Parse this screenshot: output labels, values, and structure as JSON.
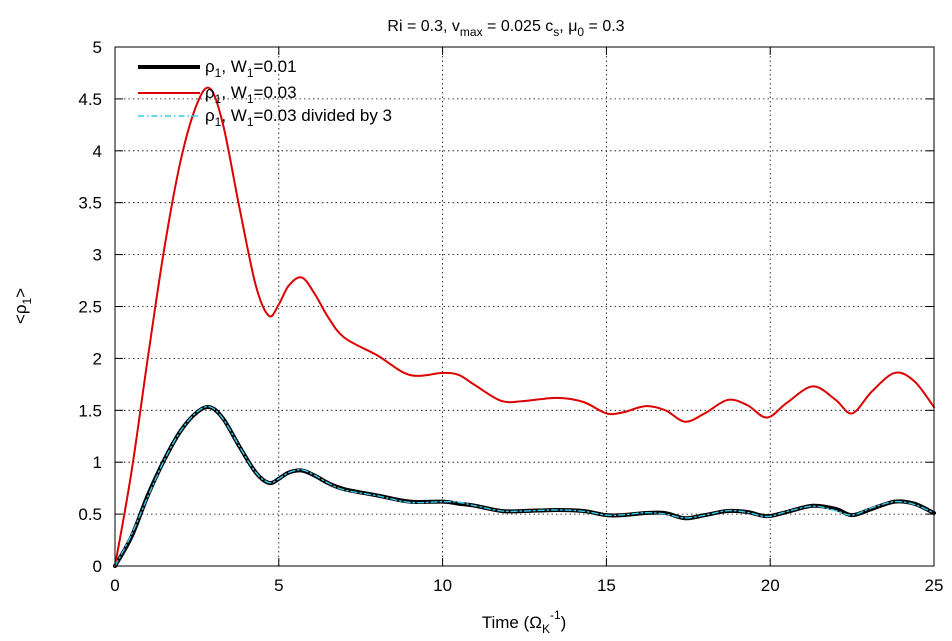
{
  "chart_data": {
    "type": "line",
    "title": {
      "t1": "Ri = 0.3, v",
      "t1_sub": "max",
      "t2": " = 0.025 c",
      "t2_sub": "s",
      "t3": ", μ",
      "t3_sub": "0",
      "t4": " = 0.3"
    },
    "xlabel": {
      "pre": "Time (Ω",
      "sub": "K",
      "sup": "-1",
      "post": ")"
    },
    "ylabel": {
      "pre": "<ρ",
      "sub": "1",
      "post": ">"
    },
    "xlim": [
      0,
      25
    ],
    "ylim": [
      0,
      5
    ],
    "xticks": [
      0,
      5,
      10,
      15,
      20,
      25
    ],
    "yticks": [
      0,
      0.5,
      1,
      1.5,
      2,
      2.5,
      3,
      3.5,
      4,
      4.5,
      5
    ],
    "xtick_labels": [
      "0",
      "5",
      "10",
      "15",
      "20",
      "25"
    ],
    "ytick_labels": [
      "0",
      "0.5",
      "1",
      "1.5",
      "2",
      "2.5",
      "3",
      "3.5",
      "4",
      "4.5",
      "5"
    ],
    "grid": true,
    "legend_position": "top-left",
    "series": [
      {
        "legend": {
          "a": "ρ",
          "a_sub": "1",
          "b": ", W",
          "b_sub": "1",
          "c": "=0.01"
        },
        "color": "#000000",
        "style": "solid-thick",
        "x": [
          0,
          0.5,
          1,
          1.5,
          2,
          2.5,
          2.9,
          3.3,
          3.8,
          4.3,
          4.7,
          5.0,
          5.3,
          5.7,
          6.1,
          6.5,
          7,
          8,
          9,
          10,
          10.5,
          11,
          11.8,
          12.5,
          13.5,
          14.3,
          15,
          15.5,
          16.2,
          16.8,
          17.4,
          18,
          18.7,
          19.3,
          19.9,
          20.5,
          21.3,
          22,
          22.5,
          23.1,
          23.8,
          24.4,
          25
        ],
        "y": [
          0,
          0.28,
          0.68,
          1.02,
          1.3,
          1.48,
          1.53,
          1.42,
          1.15,
          0.9,
          0.8,
          0.84,
          0.9,
          0.92,
          0.87,
          0.8,
          0.74,
          0.68,
          0.62,
          0.62,
          0.6,
          0.58,
          0.53,
          0.53,
          0.54,
          0.53,
          0.49,
          0.49,
          0.51,
          0.51,
          0.46,
          0.49,
          0.53,
          0.52,
          0.48,
          0.52,
          0.58,
          0.55,
          0.49,
          0.55,
          0.62,
          0.6,
          0.51
        ]
      },
      {
        "legend": {
          "a": "ρ",
          "a_sub": "1",
          "b": ", W",
          "b_sub": "1",
          "c": "=0.03"
        },
        "color": "#dd0000",
        "style": "solid",
        "x": [
          0,
          0.5,
          1,
          1.5,
          2,
          2.5,
          2.9,
          3.3,
          3.8,
          4.3,
          4.7,
          5.0,
          5.3,
          5.7,
          6.1,
          6.5,
          7,
          8,
          9,
          10,
          10.5,
          11,
          11.8,
          12.5,
          13.5,
          14.3,
          15,
          15.5,
          16.2,
          16.8,
          17.4,
          18,
          18.7,
          19.3,
          19.9,
          20.5,
          21.3,
          22,
          22.5,
          23.1,
          23.8,
          24.4,
          25
        ],
        "y": [
          0,
          0.9,
          2.0,
          3.05,
          3.9,
          4.45,
          4.6,
          4.25,
          3.45,
          2.7,
          2.41,
          2.52,
          2.7,
          2.78,
          2.62,
          2.4,
          2.2,
          2.03,
          1.84,
          1.86,
          1.84,
          1.74,
          1.59,
          1.59,
          1.62,
          1.58,
          1.47,
          1.48,
          1.54,
          1.5,
          1.39,
          1.47,
          1.6,
          1.55,
          1.43,
          1.57,
          1.73,
          1.6,
          1.47,
          1.68,
          1.86,
          1.78,
          1.53
        ]
      },
      {
        "legend": {
          "a": "ρ",
          "a_sub": "1",
          "b": ", W",
          "b_sub": "1",
          "c": "=0.03 divided by 3"
        },
        "color": "#33ccee",
        "style": "dash-dot",
        "x": [
          0,
          0.5,
          1,
          1.5,
          2,
          2.5,
          2.9,
          3.3,
          3.8,
          4.3,
          4.7,
          5.0,
          5.3,
          5.7,
          6.1,
          6.5,
          7,
          8,
          9,
          10,
          10.5,
          11,
          11.8,
          12.5,
          13.5,
          14.3,
          15,
          15.5,
          16.2,
          16.8,
          17.4,
          18,
          18.7,
          19.3,
          19.9,
          20.5,
          21.3,
          22,
          22.5,
          23.1,
          23.8,
          24.4,
          25
        ],
        "y": [
          0,
          0.3,
          0.667,
          1.017,
          1.3,
          1.483,
          1.533,
          1.417,
          1.15,
          0.9,
          0.803,
          0.84,
          0.9,
          0.927,
          0.873,
          0.8,
          0.733,
          0.677,
          0.613,
          0.62,
          0.613,
          0.58,
          0.53,
          0.53,
          0.54,
          0.527,
          0.49,
          0.493,
          0.513,
          0.5,
          0.463,
          0.49,
          0.533,
          0.517,
          0.477,
          0.523,
          0.577,
          0.533,
          0.49,
          0.56,
          0.62,
          0.593,
          0.51
        ]
      }
    ]
  }
}
